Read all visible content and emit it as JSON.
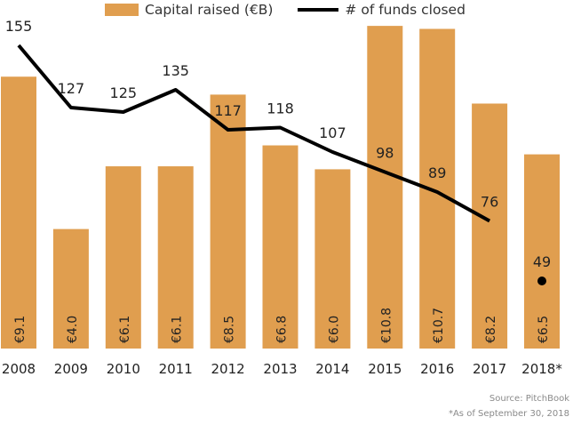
{
  "legend": {
    "bar_label": "Capital raised (€B)",
    "line_label": "# of funds closed"
  },
  "notes": {
    "source": "Source: PitchBook",
    "footnote": "*As of September 30, 2018"
  },
  "colors": {
    "bar": "#E09E4F",
    "line": "#000000"
  },
  "chart_data": {
    "type": "bar",
    "categories": [
      "2008",
      "2009",
      "2010",
      "2011",
      "2012",
      "2013",
      "2014",
      "2015",
      "2016",
      "2017",
      "2018*"
    ],
    "series": [
      {
        "name": "Capital raised (€B)",
        "type": "bar",
        "values": [
          9.1,
          4.0,
          6.1,
          6.1,
          8.5,
          6.8,
          6.0,
          10.8,
          10.7,
          8.2,
          6.5
        ],
        "labels": [
          "€9.1",
          "€4.0",
          "€6.1",
          "€6.1",
          "€8.5",
          "€6.8",
          "€6.0",
          "€10.8",
          "€10.7",
          "€8.2",
          "€6.5"
        ]
      },
      {
        "name": "# of funds closed",
        "type": "line",
        "values": [
          155,
          127,
          125,
          135,
          117,
          118,
          107,
          98,
          89,
          76,
          49
        ],
        "line_through": [
          "2008",
          "2009",
          "2010",
          "2011",
          "2012",
          "2013",
          "2014",
          "2015",
          "2016",
          "2017"
        ],
        "point_only": [
          "2018*"
        ]
      }
    ],
    "xlabel": "",
    "ylabel": ""
  }
}
